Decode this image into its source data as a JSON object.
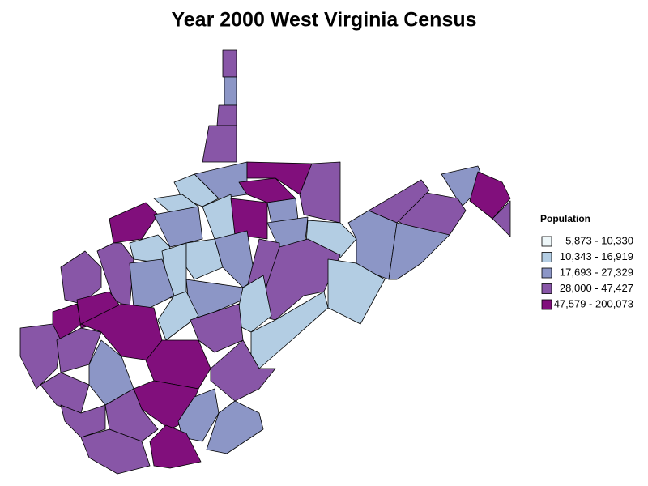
{
  "title": "Year 2000 West Virginia Census",
  "legend": {
    "title": "Population",
    "entries": [
      {
        "label": "5,873 - 10,330",
        "color": "#eef7f9"
      },
      {
        "label": "10,343 - 16,919",
        "color": "#b3cde3"
      },
      {
        "label": "17,693 - 27,329",
        "color": "#8c96c6"
      },
      {
        "label": "28,000 - 47,427",
        "color": "#8856a7"
      },
      {
        "label": "47,579 - 200,073",
        "color": "#810f7c"
      }
    ]
  }
}
